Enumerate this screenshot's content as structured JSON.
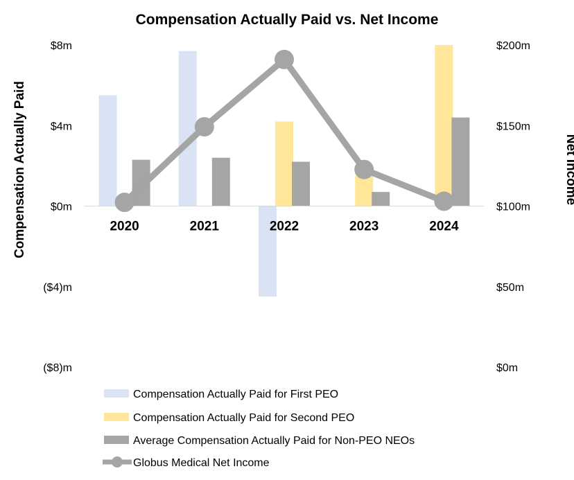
{
  "chart_data": {
    "type": "bar+line",
    "title": "Compensation Actually Paid vs. Net Income",
    "categories": [
      "2020",
      "2021",
      "2022",
      "2023",
      "2024"
    ],
    "left_axis": {
      "label": "Compensation Actually Paid",
      "range": [
        -8,
        8
      ],
      "ticks": [
        8,
        4,
        0,
        -4,
        -8
      ],
      "tick_labels": [
        "$8m",
        "$4m",
        "$0m",
        "($4)m",
        "($8)m"
      ]
    },
    "right_axis": {
      "label": "Net Income",
      "range": [
        0,
        200
      ],
      "ticks": [
        200,
        150,
        100,
        50,
        0
      ],
      "tick_labels": [
        "$200m",
        "$150m",
        "$100m",
        "$50m",
        "$0m"
      ]
    },
    "series": [
      {
        "name": "Compensation Actually Paid for First PEO",
        "type": "bar",
        "axis": "left",
        "color": "#dae3f3",
        "values": [
          5.5,
          7.7,
          -4.5,
          null,
          null
        ]
      },
      {
        "name": "Compensation Actually Paid for Second PEO",
        "type": "bar",
        "axis": "left",
        "color": "#ffe699",
        "values": [
          null,
          null,
          4.2,
          1.5,
          8.0
        ]
      },
      {
        "name": "Average Compensation Actually Paid for Non-PEO NEOs",
        "type": "bar",
        "axis": "left",
        "color": "#a5a5a5",
        "values": [
          2.3,
          2.4,
          2.2,
          0.7,
          4.4
        ]
      },
      {
        "name": "Globus Medical  Net Income",
        "type": "line",
        "axis": "right",
        "color": "#a5a5a5",
        "values": [
          102.3,
          149.2,
          191.0,
          122.7,
          103.0
        ]
      }
    ],
    "legend_position": "bottom"
  }
}
